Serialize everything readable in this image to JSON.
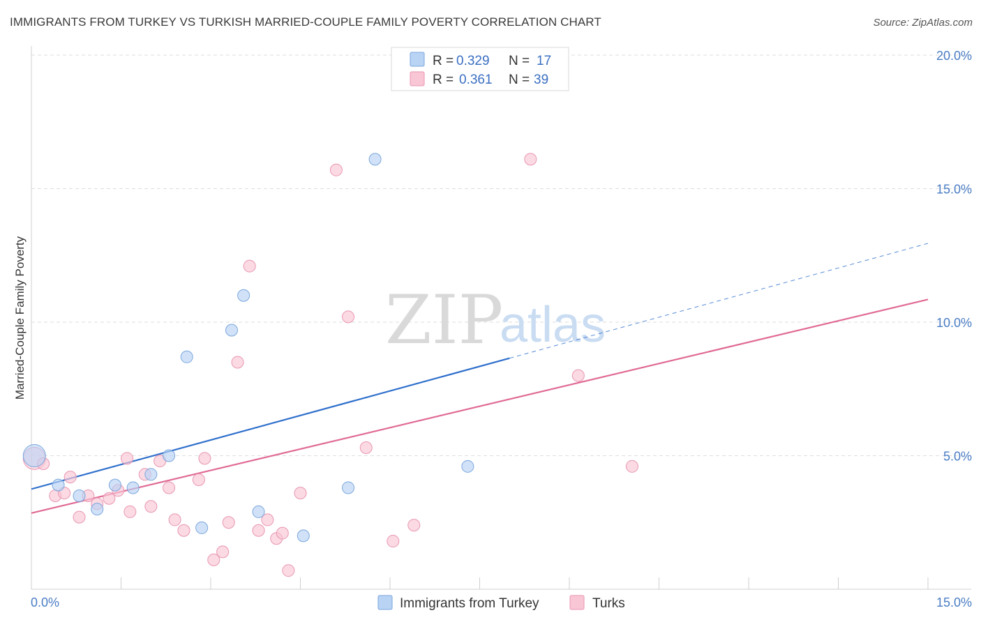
{
  "title": "IMMIGRANTS FROM TURKEY VS TURKISH MARRIED-COUPLE FAMILY POVERTY CORRELATION CHART",
  "source": "Source: ZipAtlas.com",
  "watermark": {
    "zip": "ZIP",
    "atlas": "atlas"
  },
  "colors": {
    "blue_fill": "#b9d3f5",
    "blue_stroke": "#7aa6dc",
    "blue_line": "#2f6fcc",
    "pink_fill": "#f9c6d5",
    "pink_stroke": "#e896b0",
    "pink_line": "#e06a94",
    "grid": "#dedede",
    "tick_label": "#4a7cc4"
  },
  "legend": {
    "rows": [
      {
        "r_label": "R = ",
        "r_value": "0.329",
        "n_label": "N = ",
        "n_value": "17",
        "color": "blue"
      },
      {
        "r_label": "R = ",
        "r_value": "0.361",
        "n_label": "N = ",
        "n_value": "39",
        "color": "pink"
      }
    ]
  },
  "chart_data": {
    "type": "scatter",
    "title": "IMMIGRANTS FROM TURKEY VS TURKISH MARRIED-COUPLE FAMILY POVERTY CORRELATION CHART",
    "xlabel": "",
    "ylabel": "Married-Couple Family Poverty",
    "xlim": [
      0,
      15
    ],
    "ylim": [
      0,
      20
    ],
    "x_tick_labels": [
      "0.0%",
      "15.0%"
    ],
    "y_ticks": [
      5,
      10,
      15,
      20
    ],
    "y_tick_labels": [
      "5.0%",
      "10.0%",
      "15.0%",
      "20.0%"
    ],
    "grid": true,
    "legend_position": "top-center",
    "series": [
      {
        "name": "Immigrants from Turkey",
        "color": "blue",
        "points": [
          [
            0.05,
            5.0
          ],
          [
            0.45,
            3.9
          ],
          [
            0.8,
            3.5
          ],
          [
            1.1,
            3.0
          ],
          [
            1.4,
            3.9
          ],
          [
            1.7,
            3.8
          ],
          [
            2.0,
            4.3
          ],
          [
            2.3,
            5.0
          ],
          [
            2.6,
            8.7
          ],
          [
            2.85,
            2.3
          ],
          [
            3.35,
            9.7
          ],
          [
            3.55,
            11.0
          ],
          [
            3.8,
            2.9
          ],
          [
            4.55,
            2.0
          ],
          [
            5.3,
            3.8
          ],
          [
            5.75,
            16.1
          ],
          [
            7.3,
            4.6
          ]
        ],
        "trend": {
          "x0": 0,
          "y0": 3.75,
          "x1": 8.0,
          "y1": 8.65,
          "dash_to_x": 15,
          "dash_to_y": 12.95
        }
      },
      {
        "name": "Turks",
        "color": "pink",
        "points": [
          [
            0.05,
            4.9
          ],
          [
            0.2,
            4.7
          ],
          [
            0.4,
            3.5
          ],
          [
            0.55,
            3.6
          ],
          [
            0.65,
            4.2
          ],
          [
            0.8,
            2.7
          ],
          [
            0.95,
            3.5
          ],
          [
            1.1,
            3.2
          ],
          [
            1.3,
            3.4
          ],
          [
            1.45,
            3.7
          ],
          [
            1.6,
            4.9
          ],
          [
            1.65,
            2.9
          ],
          [
            1.9,
            4.3
          ],
          [
            2.0,
            3.1
          ],
          [
            2.15,
            4.8
          ],
          [
            2.3,
            3.8
          ],
          [
            2.4,
            2.6
          ],
          [
            2.55,
            2.2
          ],
          [
            2.8,
            4.1
          ],
          [
            2.9,
            4.9
          ],
          [
            3.05,
            1.1
          ],
          [
            3.2,
            1.4
          ],
          [
            3.3,
            2.5
          ],
          [
            3.45,
            8.5
          ],
          [
            3.65,
            12.1
          ],
          [
            3.8,
            2.2
          ],
          [
            3.95,
            2.6
          ],
          [
            4.1,
            1.9
          ],
          [
            4.2,
            2.1
          ],
          [
            4.3,
            0.7
          ],
          [
            4.5,
            3.6
          ],
          [
            5.1,
            15.7
          ],
          [
            5.3,
            10.2
          ],
          [
            5.6,
            5.3
          ],
          [
            6.05,
            1.8
          ],
          [
            6.4,
            2.4
          ],
          [
            8.35,
            16.1
          ],
          [
            9.15,
            8.0
          ],
          [
            10.05,
            4.6
          ]
        ],
        "trend": {
          "x0": 0,
          "y0": 2.85,
          "x1": 15,
          "y1": 10.85
        }
      }
    ]
  },
  "bottom_legend": [
    {
      "label": "Immigrants from Turkey",
      "color": "blue"
    },
    {
      "label": "Turks",
      "color": "pink"
    }
  ]
}
